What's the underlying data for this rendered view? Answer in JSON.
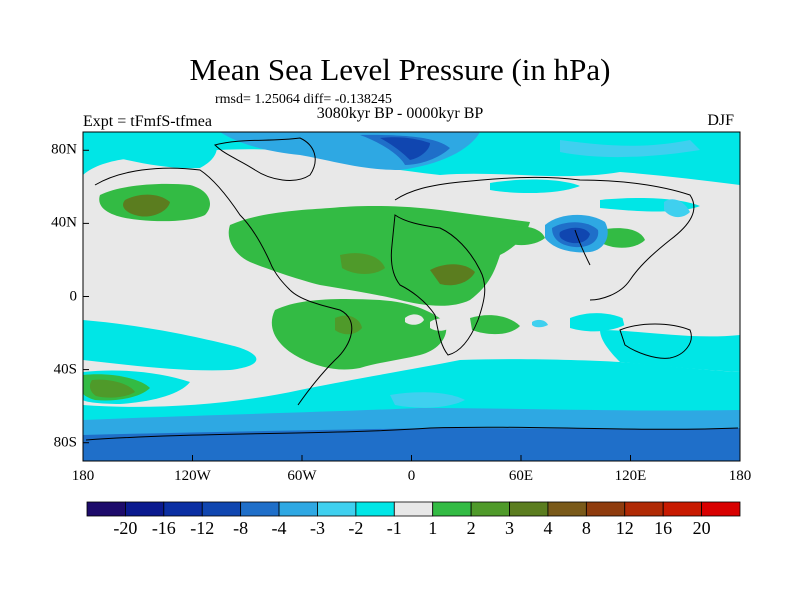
{
  "title": "Mean Sea Level Pressure (in hPa)",
  "stats": "rmsd= 1.25064 diff= -0.138245",
  "experiment": "Expt = tFmfS-tfmea",
  "period": "3080kyr BP - 0000kyr BP",
  "season": "DJF",
  "axes": {
    "lat_labels": [
      {
        "text": "80N",
        "value": 80
      },
      {
        "text": "40N",
        "value": 40
      },
      {
        "text": "0",
        "value": 0
      },
      {
        "text": "40S",
        "value": -40
      },
      {
        "text": "80S",
        "value": -80
      }
    ],
    "lon_labels": [
      {
        "text": "180",
        "value": -180
      },
      {
        "text": "120W",
        "value": -120
      },
      {
        "text": "60W",
        "value": -60
      },
      {
        "text": "0",
        "value": 0
      },
      {
        "text": "60E",
        "value": 60
      },
      {
        "text": "120E",
        "value": 120
      },
      {
        "text": "180",
        "value": 180
      }
    ]
  },
  "colorbar": {
    "colors": [
      "#1d0b6b",
      "#0b1a8f",
      "#0b2fa3",
      "#1046b0",
      "#1f6fc9",
      "#2ea8e3",
      "#3fd0ef",
      "#00e6e6",
      "#e8e8e8",
      "#33bb44",
      "#4f9a2a",
      "#5b7d1f",
      "#7a5a1a",
      "#8f3c0e",
      "#b02a05",
      "#c81a00",
      "#d80000"
    ],
    "labels": [
      "-20",
      "-16",
      "-12",
      "-8",
      "-4",
      "-3",
      "-2",
      "-1",
      "1",
      "2",
      "3",
      "4",
      "8",
      "12",
      "16",
      "20"
    ]
  },
  "map": {
    "ocean_fill": "#00e6e6",
    "neutral_fill": "#e8e8e8"
  }
}
